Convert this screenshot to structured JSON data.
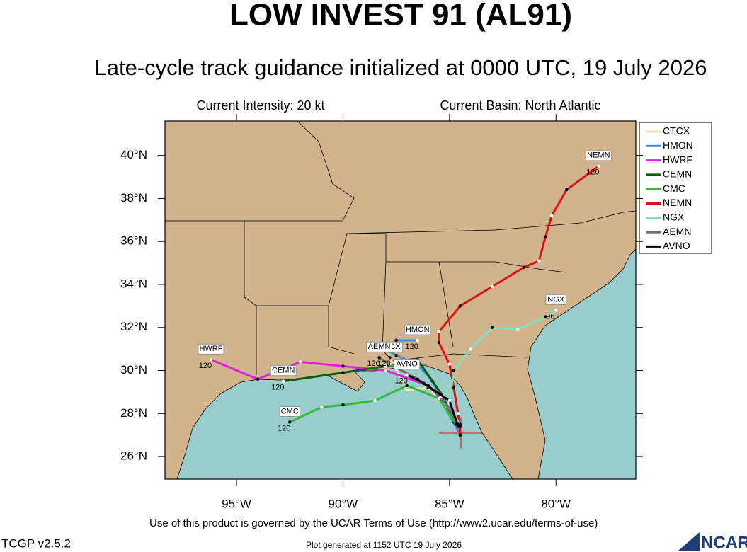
{
  "header": {
    "title": "LOW INVEST 91 (AL91)",
    "subtitle": "Late-cycle track guidance initialized at 0000 UTC, 19 July 2026",
    "intensity": "Current Intensity: 20 kt",
    "basin": "Current Basin: North Atlantic"
  },
  "map": {
    "lonlim": [
      -98.36,
      -76.25
    ],
    "latlim": [
      24.95,
      41.6
    ],
    "lat_ticks": [
      {
        "value": 26,
        "label": "26°N"
      },
      {
        "value": 28,
        "label": "28°N"
      },
      {
        "value": 30,
        "label": "30°N"
      },
      {
        "value": 32,
        "label": "32°N"
      },
      {
        "value": 34,
        "label": "34°N"
      },
      {
        "value": 36,
        "label": "36°N"
      },
      {
        "value": 38,
        "label": "38°N"
      },
      {
        "value": 40,
        "label": "40°N"
      }
    ],
    "lon_ticks": [
      {
        "value": -95,
        "label": "95°W"
      },
      {
        "value": -90,
        "label": "90°W"
      },
      {
        "value": -85,
        "label": "85°W"
      },
      {
        "value": -80,
        "label": "80°W"
      }
    ],
    "tracks": [
      {
        "name": "CTCX",
        "color": "#f5deb3",
        "lon": [
          -84.6,
          -85.2,
          -86.0,
          -87.0,
          -87.8
        ],
        "lat": [
          27.4,
          28.4,
          29.2,
          29.1,
          30.6
        ],
        "end_hour": 120
      },
      {
        "name": "HMON",
        "color": "#3a8ee6",
        "lon": [
          -84.5,
          -85.2,
          -85.8,
          -86.5,
          -87.5,
          -88.0,
          -87.5,
          -86.5
        ],
        "lat": [
          27.0,
          28.3,
          29.5,
          30.3,
          30.7,
          31.0,
          31.4,
          31.4
        ],
        "end_hour": 120
      },
      {
        "name": "HWRF",
        "color": "#e020e0",
        "lon": [
          -84.5,
          -85.2,
          -86.0,
          -88.0,
          -90.0,
          -92.0,
          -94.0,
          -96.2
        ],
        "lat": [
          27.5,
          28.5,
          29.3,
          30.0,
          30.2,
          30.4,
          29.6,
          30.5
        ],
        "end_hour": 120
      },
      {
        "name": "CEMN",
        "color": "#0a5c0a",
        "lon": [
          -84.8,
          -85.3,
          -86.5,
          -88.0,
          -90.0,
          -92.8
        ],
        "lat": [
          27.6,
          28.8,
          30.5,
          30.2,
          29.9,
          29.5
        ],
        "end_hour": 120
      },
      {
        "name": "CMC",
        "color": "#33bb33",
        "lon": [
          -84.7,
          -85.5,
          -87.0,
          -88.5,
          -90.0,
          -91.0,
          -92.5
        ],
        "lat": [
          27.5,
          28.7,
          29.3,
          28.6,
          28.4,
          28.3,
          27.6
        ],
        "end_hour": 120
      },
      {
        "name": "NEMN",
        "color": "#e01010",
        "lon": [
          -84.5,
          -84.6,
          -84.8,
          -85.0,
          -85.5,
          -85.5,
          -84.5,
          -83.0,
          -81.5,
          -80.8,
          -80.5,
          -80.2,
          -79.5,
          -78.0
        ],
        "lat": [
          27.0,
          28.0,
          29.2,
          30.3,
          31.3,
          31.8,
          33.0,
          33.9,
          34.8,
          35.1,
          36.2,
          37.2,
          38.4,
          39.5
        ],
        "end_hour": 120
      },
      {
        "name": "NGX",
        "color": "#7fe0c0",
        "lon": [
          -84.5,
          -85.0,
          -84.8,
          -84.0,
          -83.0,
          -81.8,
          -80.5,
          -80.0
        ],
        "lat": [
          27.4,
          28.5,
          30.0,
          31.0,
          32.0,
          31.9,
          32.5,
          32.8
        ],
        "end_hour": 96
      },
      {
        "name": "AEMN",
        "color": "#707070",
        "lon": [
          -84.6,
          -85.4,
          -86.5,
          -87.8,
          -88.3
        ],
        "lat": [
          27.5,
          28.8,
          29.6,
          30.3,
          30.6
        ],
        "end_hour": 120
      },
      {
        "name": "AVNO",
        "color": "#000000",
        "lon": [
          -84.6,
          -85.0,
          -86.2,
          -87.0
        ],
        "lat": [
          27.4,
          28.6,
          29.4,
          29.8
        ],
        "end_hour": 120
      }
    ]
  },
  "footer": {
    "terms": "Use of this product is governed by the UCAR Terms of Use (http://www2.ucar.edu/terms-of-use)",
    "version": "TCGP v2.5.2",
    "generated": "Plot generated at 1152 UTC   19 July 2026",
    "logo": "NCAR"
  }
}
